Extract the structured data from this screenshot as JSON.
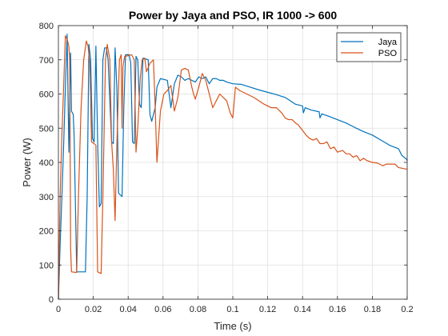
{
  "chart_data": {
    "type": "line",
    "title": "Power by Jaya and PSO, IR 1000 -> 600",
    "xlabel": "Time (s)",
    "ylabel": "Power (W)",
    "xlim": [
      0,
      0.2
    ],
    "ylim": [
      0,
      800
    ],
    "xticks": [
      0,
      0.02,
      0.04,
      0.06,
      0.08,
      0.1,
      0.12,
      0.14,
      0.16,
      0.18,
      0.2
    ],
    "xtick_labels": [
      "0",
      "0.02",
      "0.04",
      "0.06",
      "0.08",
      "0.1",
      "0.12",
      "0.14",
      "0.16",
      "0.18",
      "0.2"
    ],
    "yticks": [
      0,
      100,
      200,
      300,
      400,
      500,
      600,
      700,
      800
    ],
    "ytick_labels": [
      "0",
      "100",
      "200",
      "300",
      "400",
      "500",
      "600",
      "700",
      "800"
    ],
    "grid": true,
    "legend_position": "top-right",
    "series": [
      {
        "name": "Jaya",
        "color": "#0072BD",
        "points": [
          [
            0.0,
            0
          ],
          [
            0.001,
            160
          ],
          [
            0.002,
            300
          ],
          [
            0.003,
            450
          ],
          [
            0.004,
            620
          ],
          [
            0.005,
            775
          ],
          [
            0.006,
            430
          ],
          [
            0.007,
            720
          ],
          [
            0.0075,
            550
          ],
          [
            0.0085,
            540
          ],
          [
            0.009,
            480
          ],
          [
            0.0105,
            80
          ],
          [
            0.0155,
            80
          ],
          [
            0.0165,
            300
          ],
          [
            0.0175,
            745
          ],
          [
            0.0185,
            700
          ],
          [
            0.0195,
            470
          ],
          [
            0.0205,
            460
          ],
          [
            0.0215,
            740
          ],
          [
            0.0225,
            460
          ],
          [
            0.0235,
            270
          ],
          [
            0.0245,
            280
          ],
          [
            0.0255,
            700
          ],
          [
            0.0265,
            735
          ],
          [
            0.0275,
            735
          ],
          [
            0.0285,
            700
          ],
          [
            0.0305,
            460
          ],
          [
            0.0315,
            455
          ],
          [
            0.0325,
            735
          ],
          [
            0.0335,
            620
          ],
          [
            0.0345,
            310
          ],
          [
            0.0365,
            300
          ],
          [
            0.0375,
            560
          ],
          [
            0.0385,
            715
          ],
          [
            0.0405,
            715
          ],
          [
            0.0415,
            690
          ],
          [
            0.0425,
            460
          ],
          [
            0.0435,
            455
          ],
          [
            0.0445,
            710
          ],
          [
            0.0455,
            700
          ],
          [
            0.0465,
            570
          ],
          [
            0.0475,
            560
          ],
          [
            0.0485,
            705
          ],
          [
            0.0515,
            700
          ],
          [
            0.0525,
            540
          ],
          [
            0.0535,
            520
          ],
          [
            0.0555,
            560
          ],
          [
            0.0565,
            620
          ],
          [
            0.0585,
            645
          ],
          [
            0.0625,
            640
          ],
          [
            0.0645,
            560
          ],
          [
            0.0665,
            630
          ],
          [
            0.0685,
            655
          ],
          [
            0.0705,
            650
          ],
          [
            0.0725,
            640
          ],
          [
            0.0745,
            645
          ],
          [
            0.0765,
            640
          ],
          [
            0.0785,
            635
          ],
          [
            0.0805,
            650
          ],
          [
            0.0825,
            645
          ],
          [
            0.0845,
            650
          ],
          [
            0.0865,
            630
          ],
          [
            0.0885,
            645
          ],
          [
            0.0905,
            645
          ],
          [
            0.0925,
            640
          ],
          [
            0.0945,
            640
          ],
          [
            0.0965,
            635
          ],
          [
            0.1,
            630
          ],
          [
            0.105,
            628
          ],
          [
            0.11,
            620
          ],
          [
            0.115,
            612
          ],
          [
            0.12,
            605
          ],
          [
            0.125,
            598
          ],
          [
            0.13,
            590
          ],
          [
            0.133,
            580
          ],
          [
            0.136,
            570
          ],
          [
            0.14,
            565
          ],
          [
            0.1405,
            545
          ],
          [
            0.1415,
            560
          ],
          [
            0.145,
            553
          ],
          [
            0.1495,
            548
          ],
          [
            0.15,
            530
          ],
          [
            0.151,
            542
          ],
          [
            0.155,
            535
          ],
          [
            0.16,
            525
          ],
          [
            0.165,
            515
          ],
          [
            0.17,
            502
          ],
          [
            0.175,
            490
          ],
          [
            0.18,
            480
          ],
          [
            0.185,
            465
          ],
          [
            0.19,
            450
          ],
          [
            0.195,
            440
          ],
          [
            0.197,
            420
          ],
          [
            0.1995,
            410
          ],
          [
            0.2,
            405
          ]
        ]
      },
      {
        "name": "PSO",
        "color": "#D95319",
        "points": [
          [
            0.0,
            0
          ],
          [
            0.0005,
            150
          ],
          [
            0.001,
            300
          ],
          [
            0.002,
            480
          ],
          [
            0.003,
            620
          ],
          [
            0.004,
            770
          ],
          [
            0.005,
            760
          ],
          [
            0.006,
            740
          ],
          [
            0.0065,
            700
          ],
          [
            0.007,
            150
          ],
          [
            0.0075,
            80
          ],
          [
            0.0105,
            78
          ],
          [
            0.0115,
            300
          ],
          [
            0.013,
            560
          ],
          [
            0.0145,
            700
          ],
          [
            0.016,
            755
          ],
          [
            0.017,
            740
          ],
          [
            0.018,
            690
          ],
          [
            0.019,
            460
          ],
          [
            0.0205,
            455
          ],
          [
            0.0215,
            450
          ],
          [
            0.0225,
            80
          ],
          [
            0.0245,
            75
          ],
          [
            0.0255,
            300
          ],
          [
            0.027,
            700
          ],
          [
            0.028,
            745
          ],
          [
            0.0295,
            700
          ],
          [
            0.0305,
            460
          ],
          [
            0.0315,
            380
          ],
          [
            0.0325,
            230
          ],
          [
            0.0335,
            450
          ],
          [
            0.035,
            700
          ],
          [
            0.036,
            715
          ],
          [
            0.0365,
            500
          ],
          [
            0.037,
            680
          ],
          [
            0.038,
            710
          ],
          [
            0.04,
            712
          ],
          [
            0.042,
            715
          ],
          [
            0.0435,
            700
          ],
          [
            0.0445,
            430
          ],
          [
            0.0455,
            500
          ],
          [
            0.047,
            650
          ],
          [
            0.048,
            700
          ],
          [
            0.0495,
            705
          ],
          [
            0.0505,
            665
          ],
          [
            0.0525,
            690
          ],
          [
            0.0545,
            700
          ],
          [
            0.0555,
            560
          ],
          [
            0.0565,
            400
          ],
          [
            0.0585,
            550
          ],
          [
            0.0605,
            600
          ],
          [
            0.0625,
            610
          ],
          [
            0.0645,
            625
          ],
          [
            0.0665,
            550
          ],
          [
            0.0685,
            590
          ],
          [
            0.0705,
            670
          ],
          [
            0.0725,
            675
          ],
          [
            0.0745,
            670
          ],
          [
            0.0765,
            620
          ],
          [
            0.0775,
            600
          ],
          [
            0.0785,
            585
          ],
          [
            0.0805,
            620
          ],
          [
            0.0825,
            660
          ],
          [
            0.0845,
            640
          ],
          [
            0.0865,
            600
          ],
          [
            0.0885,
            560
          ],
          [
            0.0905,
            580
          ],
          [
            0.0925,
            600
          ],
          [
            0.0945,
            590
          ],
          [
            0.0965,
            580
          ],
          [
            0.0985,
            545
          ],
          [
            0.1,
            530
          ],
          [
            0.1015,
            620
          ],
          [
            0.104,
            610
          ],
          [
            0.108,
            600
          ],
          [
            0.112,
            590
          ],
          [
            0.115,
            580
          ],
          [
            0.118,
            570
          ],
          [
            0.12,
            565
          ],
          [
            0.122,
            560
          ],
          [
            0.125,
            560
          ],
          [
            0.128,
            545
          ],
          [
            0.13,
            530
          ],
          [
            0.132,
            525
          ],
          [
            0.134,
            525
          ],
          [
            0.136,
            515
          ],
          [
            0.1375,
            510
          ],
          [
            0.139,
            500
          ],
          [
            0.142,
            480
          ],
          [
            0.144,
            470
          ],
          [
            0.146,
            465
          ],
          [
            0.148,
            470
          ],
          [
            0.15,
            455
          ],
          [
            0.152,
            455
          ],
          [
            0.154,
            460
          ],
          [
            0.156,
            440
          ],
          [
            0.158,
            445
          ],
          [
            0.16,
            430
          ],
          [
            0.163,
            435
          ],
          [
            0.165,
            425
          ],
          [
            0.167,
            425
          ],
          [
            0.169,
            415
          ],
          [
            0.171,
            420
          ],
          [
            0.173,
            405
          ],
          [
            0.175,
            412
          ],
          [
            0.177,
            405
          ],
          [
            0.18,
            400
          ],
          [
            0.183,
            398
          ],
          [
            0.186,
            390
          ],
          [
            0.188,
            395
          ],
          [
            0.19,
            395
          ],
          [
            0.193,
            395
          ],
          [
            0.195,
            385
          ],
          [
            0.198,
            382
          ],
          [
            0.2,
            380
          ]
        ]
      }
    ]
  }
}
